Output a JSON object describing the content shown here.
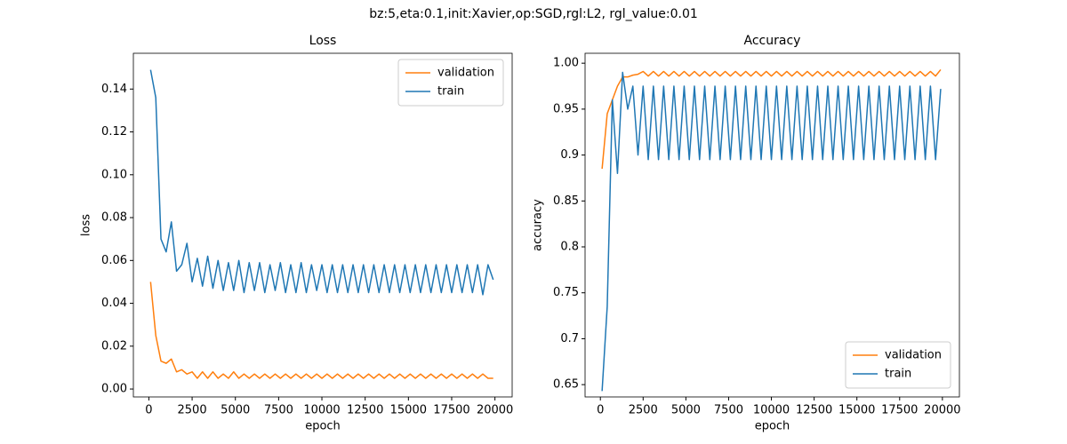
{
  "suptitle": "bz:5,eta:0.1,init:Xavier,op:SGD,rgl:L2, rgl_value:0.01",
  "chart_data": [
    {
      "type": "line",
      "title": "Loss",
      "xlabel": "epoch",
      "ylabel": "loss",
      "legend": "upper right",
      "x": [
        100,
        400,
        700,
        1000,
        1300,
        1600,
        1900,
        2200,
        2500,
        2800,
        3100,
        3400,
        3700,
        4000,
        4300,
        4600,
        4900,
        5200,
        5500,
        5800,
        6100,
        6400,
        6700,
        7000,
        7300,
        7600,
        7900,
        8200,
        8500,
        8800,
        9100,
        9400,
        9700,
        10000,
        10300,
        10600,
        10900,
        11200,
        11500,
        11800,
        12100,
        12400,
        12700,
        13000,
        13300,
        13600,
        13900,
        14200,
        14500,
        14800,
        15100,
        15400,
        15700,
        16000,
        16300,
        16600,
        16900,
        17200,
        17500,
        17800,
        18100,
        18400,
        18700,
        19000,
        19300,
        19600,
        19900
      ],
      "series": [
        {
          "name": "validation",
          "color": "#ff7f0e",
          "values": [
            0.05,
            0.025,
            0.013,
            0.012,
            0.014,
            0.008,
            0.009,
            0.007,
            0.008,
            0.005,
            0.008,
            0.005,
            0.008,
            0.005,
            0.007,
            0.005,
            0.008,
            0.005,
            0.007,
            0.005,
            0.007,
            0.005,
            0.007,
            0.005,
            0.007,
            0.005,
            0.007,
            0.005,
            0.007,
            0.005,
            0.007,
            0.005,
            0.007,
            0.005,
            0.007,
            0.005,
            0.007,
            0.005,
            0.007,
            0.005,
            0.007,
            0.005,
            0.007,
            0.005,
            0.007,
            0.005,
            0.007,
            0.005,
            0.007,
            0.005,
            0.007,
            0.005,
            0.007,
            0.005,
            0.007,
            0.005,
            0.007,
            0.005,
            0.007,
            0.005,
            0.007,
            0.005,
            0.007,
            0.005,
            0.007,
            0.005,
            0.005
          ]
        },
        {
          "name": "train",
          "color": "#1f77b4",
          "values": [
            0.149,
            0.136,
            0.07,
            0.064,
            0.078,
            0.055,
            0.058,
            0.068,
            0.05,
            0.061,
            0.048,
            0.062,
            0.047,
            0.06,
            0.046,
            0.059,
            0.046,
            0.06,
            0.045,
            0.059,
            0.046,
            0.059,
            0.045,
            0.058,
            0.046,
            0.059,
            0.045,
            0.058,
            0.045,
            0.059,
            0.045,
            0.058,
            0.046,
            0.058,
            0.045,
            0.058,
            0.045,
            0.058,
            0.045,
            0.058,
            0.045,
            0.058,
            0.045,
            0.058,
            0.045,
            0.058,
            0.045,
            0.058,
            0.045,
            0.058,
            0.045,
            0.058,
            0.045,
            0.058,
            0.045,
            0.058,
            0.045,
            0.058,
            0.045,
            0.058,
            0.045,
            0.058,
            0.045,
            0.058,
            0.044,
            0.058,
            0.051
          ]
        }
      ],
      "xlim": [
        -895,
        20995
      ],
      "xticks": [
        0,
        2500,
        5000,
        7500,
        10000,
        12500,
        15000,
        17500,
        20000
      ],
      "ylim": [
        -0.0037,
        0.1567
      ],
      "yticks": [
        {
          "value": 0,
          "label": "0.00"
        },
        {
          "value": 0.02,
          "label": "0.02"
        },
        {
          "value": 0.04,
          "label": "0.04"
        },
        {
          "value": 0.06,
          "label": "0.06"
        },
        {
          "value": 0.08,
          "label": "0.08"
        },
        {
          "value": 0.1,
          "label": "0.10"
        },
        {
          "value": 0.12,
          "label": "0.12"
        },
        {
          "value": 0.14,
          "label": "0.14"
        }
      ]
    },
    {
      "type": "line",
      "title": "Accuracy",
      "xlabel": "epoch",
      "ylabel": "accuracy",
      "legend": "lower right",
      "x": [
        100,
        400,
        700,
        1000,
        1300,
        1600,
        1900,
        2200,
        2500,
        2800,
        3100,
        3400,
        3700,
        4000,
        4300,
        4600,
        4900,
        5200,
        5500,
        5800,
        6100,
        6400,
        6700,
        7000,
        7300,
        7600,
        7900,
        8200,
        8500,
        8800,
        9100,
        9400,
        9700,
        10000,
        10300,
        10600,
        10900,
        11200,
        11500,
        11800,
        12100,
        12400,
        12700,
        13000,
        13300,
        13600,
        13900,
        14200,
        14500,
        14800,
        15100,
        15400,
        15700,
        16000,
        16300,
        16600,
        16900,
        17200,
        17500,
        17800,
        18100,
        18400,
        18700,
        19000,
        19300,
        19600,
        19900
      ],
      "series": [
        {
          "name": "validation",
          "color": "#ff7f0e",
          "values": [
            0.885,
            0.945,
            0.96,
            0.975,
            0.985,
            0.985,
            0.987,
            0.988,
            0.991,
            0.986,
            0.991,
            0.986,
            0.991,
            0.986,
            0.991,
            0.986,
            0.991,
            0.986,
            0.991,
            0.986,
            0.991,
            0.986,
            0.991,
            0.986,
            0.991,
            0.986,
            0.991,
            0.986,
            0.991,
            0.986,
            0.991,
            0.986,
            0.991,
            0.986,
            0.991,
            0.986,
            0.991,
            0.986,
            0.991,
            0.986,
            0.991,
            0.986,
            0.991,
            0.986,
            0.991,
            0.986,
            0.991,
            0.986,
            0.991,
            0.986,
            0.991,
            0.986,
            0.991,
            0.986,
            0.991,
            0.986,
            0.991,
            0.986,
            0.991,
            0.986,
            0.991,
            0.986,
            0.991,
            0.986,
            0.991,
            0.986,
            0.993
          ]
        },
        {
          "name": "train",
          "color": "#1f77b4",
          "values": [
            0.643,
            0.735,
            0.96,
            0.88,
            0.99,
            0.95,
            0.975,
            0.9,
            0.975,
            0.895,
            0.975,
            0.895,
            0.975,
            0.895,
            0.975,
            0.895,
            0.975,
            0.895,
            0.975,
            0.895,
            0.975,
            0.895,
            0.975,
            0.895,
            0.975,
            0.895,
            0.975,
            0.895,
            0.975,
            0.895,
            0.975,
            0.895,
            0.975,
            0.895,
            0.975,
            0.895,
            0.975,
            0.895,
            0.975,
            0.895,
            0.975,
            0.895,
            0.975,
            0.895,
            0.975,
            0.895,
            0.975,
            0.895,
            0.975,
            0.895,
            0.975,
            0.895,
            0.975,
            0.895,
            0.975,
            0.895,
            0.975,
            0.895,
            0.975,
            0.895,
            0.975,
            0.895,
            0.975,
            0.895,
            0.975,
            0.895,
            0.972
          ]
        }
      ],
      "xlim": [
        -895,
        20995
      ],
      "xticks": [
        0,
        2500,
        5000,
        7500,
        10000,
        12500,
        15000,
        17500,
        20000
      ],
      "ylim": [
        0.6366,
        1.0108
      ],
      "yticks": [
        0.65,
        0.7,
        0.75,
        0.8,
        0.85,
        0.9,
        0.95,
        {
          "value": 1,
          "label": "1.00"
        }
      ]
    }
  ]
}
